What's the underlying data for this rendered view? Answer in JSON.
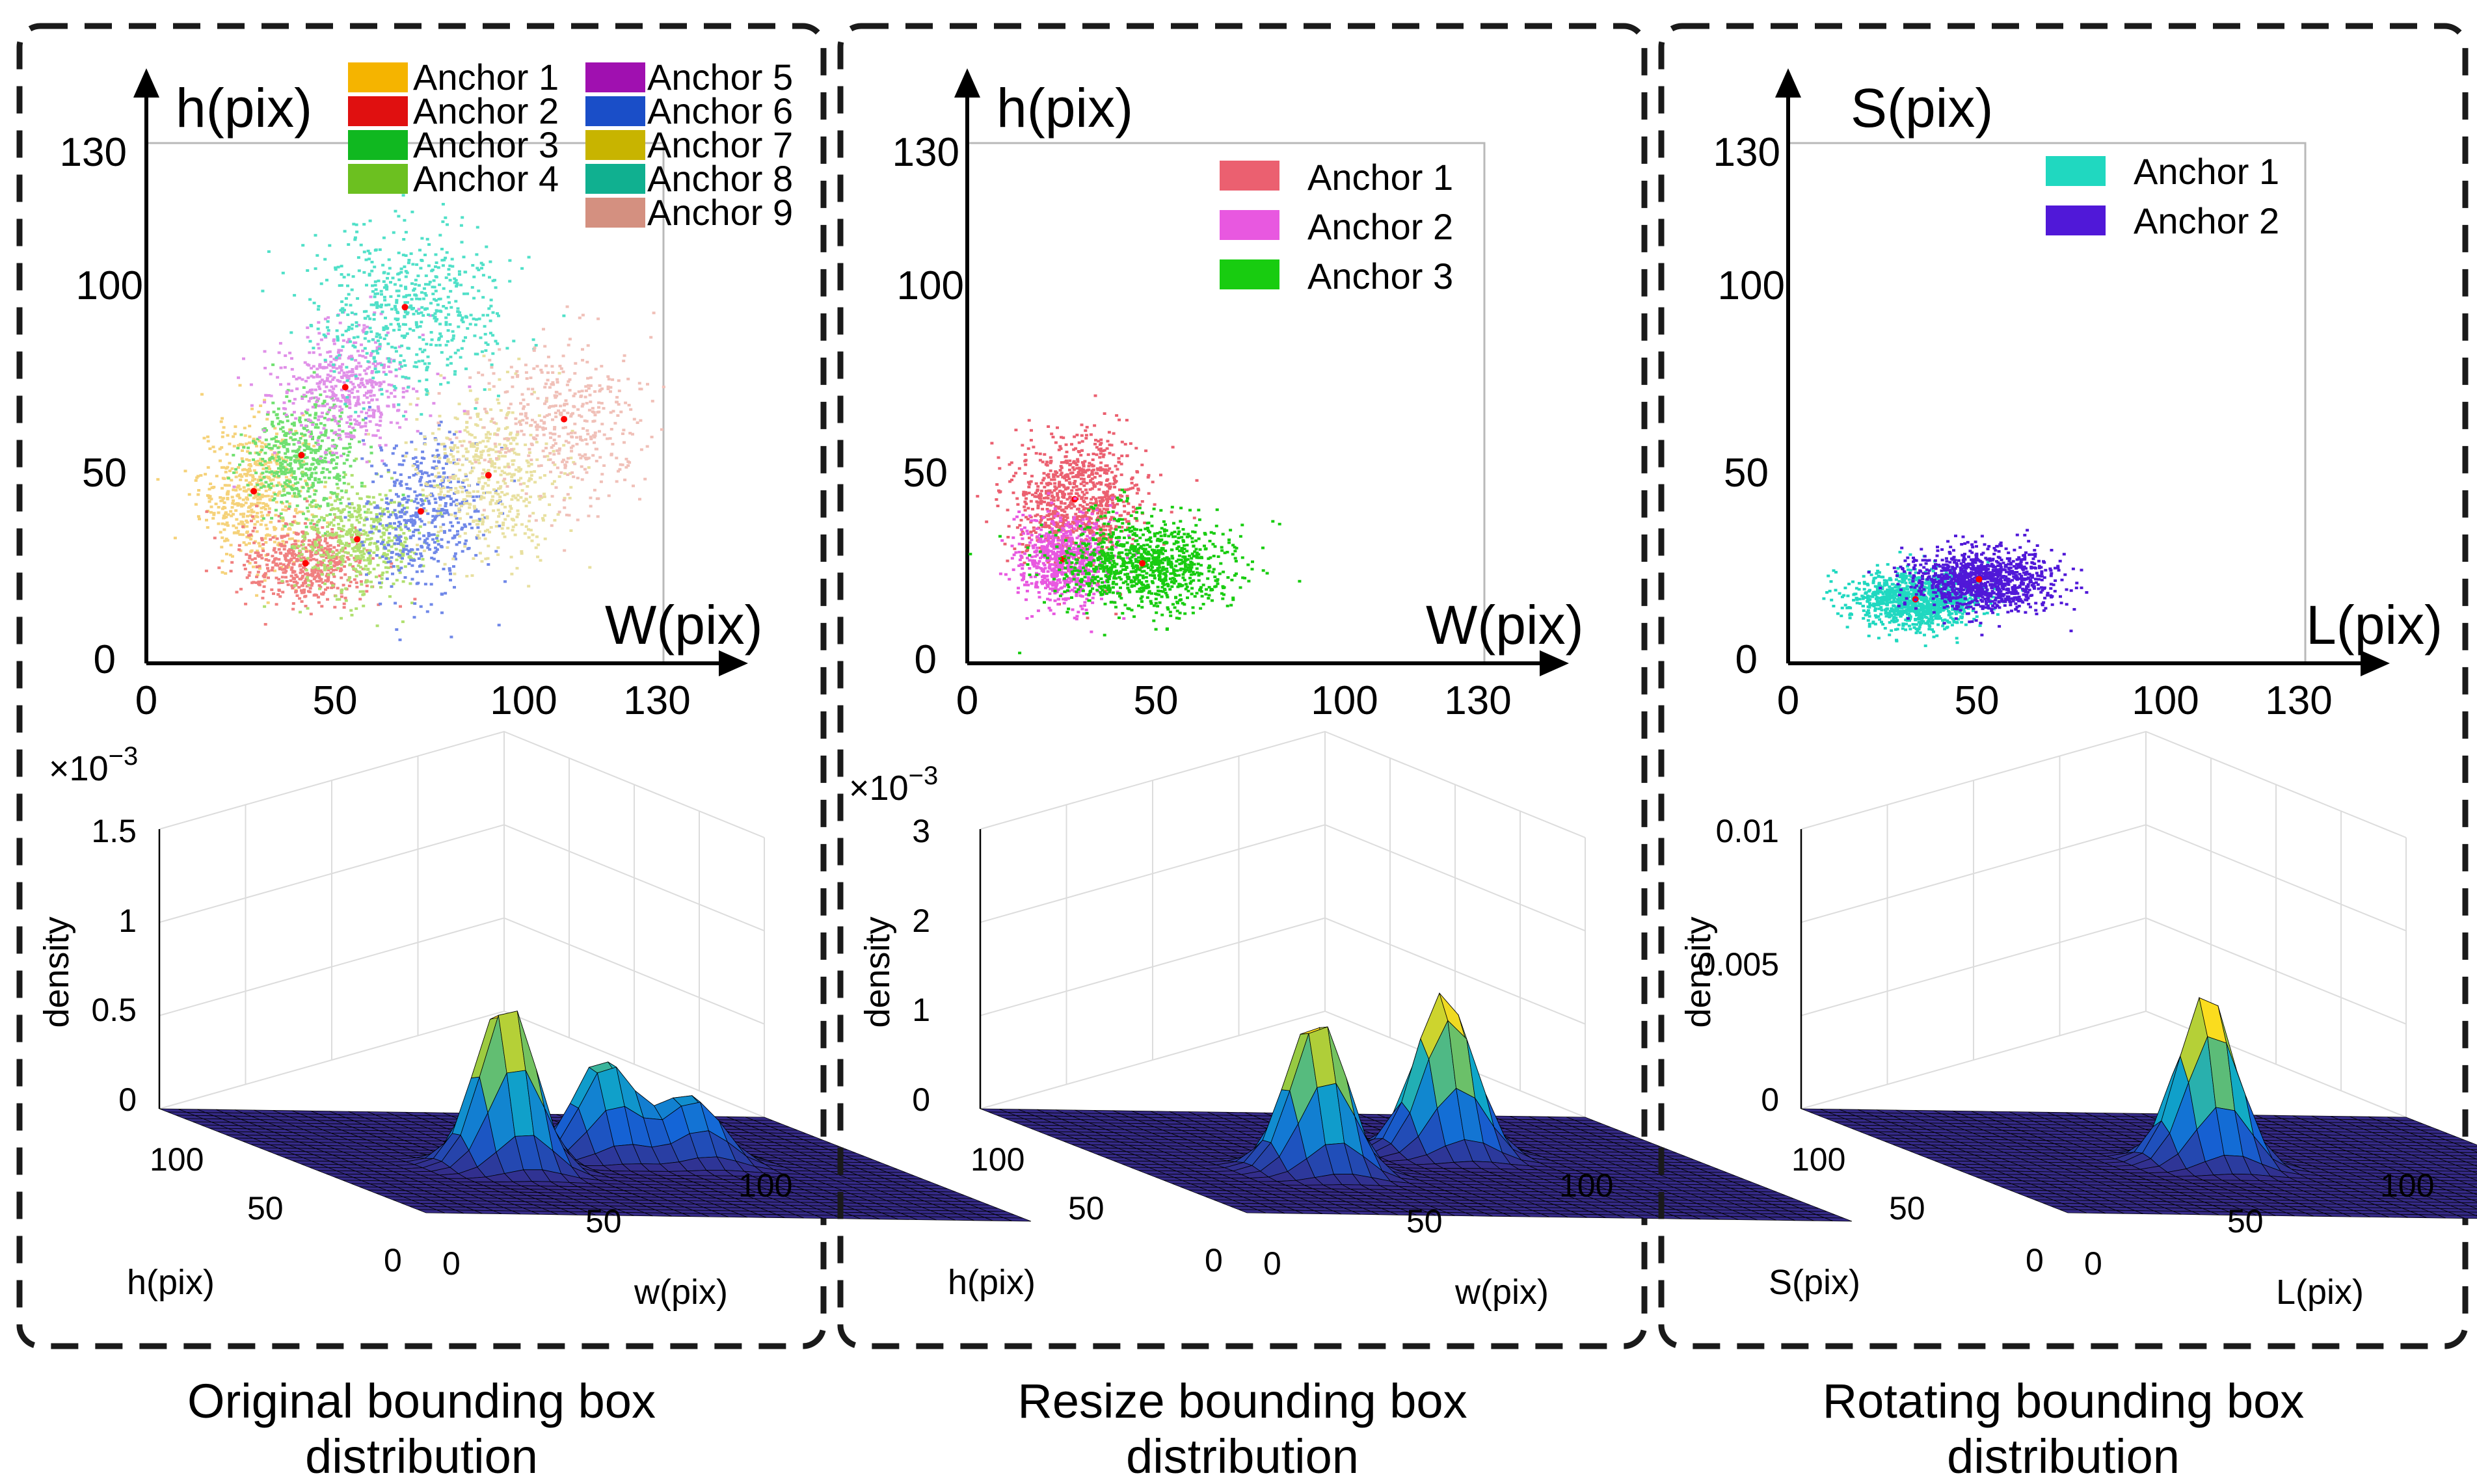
{
  "chart_data": [
    {
      "panel": "original",
      "type": "scatter",
      "caption": [
        "Original bounding box",
        "distribution"
      ],
      "xlabel": "W(pix)",
      "ylabel": "h(pix)",
      "xlim": [
        0,
        130
      ],
      "ylim": [
        0,
        130
      ],
      "xticks": [
        0,
        50,
        100,
        130
      ],
      "yticks": [
        0,
        50,
        100,
        130
      ],
      "legend": [
        {
          "name": "Anchor 1",
          "color": "#f5b400"
        },
        {
          "name": "Anchor 2",
          "color": "#e01010"
        },
        {
          "name": "Anchor 3",
          "color": "#10b820"
        },
        {
          "name": "Anchor 4",
          "color": "#6cc020"
        },
        {
          "name": "Anchor 5",
          "color": "#a010b0"
        },
        {
          "name": "Anchor 6",
          "color": "#1a4ec8"
        },
        {
          "name": "Anchor 7",
          "color": "#c8b400"
        },
        {
          "name": "Anchor 8",
          "color": "#10b090"
        },
        {
          "name": "Anchor 9",
          "color": "#d49080"
        }
      ],
      "clusters": [
        {
          "name": "Anchor 1",
          "color": "#f5d27a",
          "center": [
            27,
            43
          ],
          "spread": [
            7,
            9
          ],
          "count": 520
        },
        {
          "name": "Anchor 2",
          "color": "#f08080",
          "center": [
            40,
            25
          ],
          "spread": [
            8,
            5
          ],
          "count": 520
        },
        {
          "name": "Anchor 3",
          "color": "#70e070",
          "center": [
            39,
            52
          ],
          "spread": [
            7,
            7
          ],
          "count": 480
        },
        {
          "name": "Anchor 4",
          "color": "#b0e070",
          "center": [
            53,
            31
          ],
          "spread": [
            8,
            7
          ],
          "count": 480
        },
        {
          "name": "Anchor 5",
          "color": "#e090e8",
          "center": [
            50,
            69
          ],
          "spread": [
            9,
            8
          ],
          "count": 480
        },
        {
          "name": "Anchor 6",
          "color": "#7088e8",
          "center": [
            69,
            38
          ],
          "spread": [
            8,
            9
          ],
          "count": 460
        },
        {
          "name": "Anchor 7",
          "color": "#e8e0a0",
          "center": [
            86,
            47
          ],
          "spread": [
            9,
            10
          ],
          "count": 480
        },
        {
          "name": "Anchor 8",
          "color": "#50e0c8",
          "center": [
            65,
            89
          ],
          "spread": [
            12,
            10
          ],
          "count": 560
        },
        {
          "name": "Anchor 9",
          "color": "#f0c0b8",
          "center": [
            105,
            61
          ],
          "spread": [
            11,
            10
          ],
          "count": 420
        }
      ],
      "z_label": "density",
      "z_scale": "×10",
      "z_exponent": "−3",
      "z_ticks": [
        "0",
        "0.5",
        "1",
        "1.5"
      ],
      "surface_xlabel": "w(pix)",
      "surface_ylabel": "h(pix)",
      "surface_ticks": [
        "0",
        "50",
        "100"
      ],
      "peaks": [
        {
          "u": 0.33,
          "v": 0.55,
          "h": 0.62
        },
        {
          "u": 0.55,
          "v": 0.42,
          "h": 0.36
        },
        {
          "u": 0.68,
          "v": 0.45,
          "h": 0.24
        }
      ]
    },
    {
      "panel": "resize",
      "type": "scatter",
      "caption": [
        "Resize bounding box",
        "distribution"
      ],
      "xlabel": "W(pix)",
      "ylabel": "h(pix)",
      "xlim": [
        0,
        130
      ],
      "ylim": [
        0,
        130
      ],
      "xticks": [
        0,
        50,
        100,
        130
      ],
      "yticks": [
        0,
        50,
        100,
        130
      ],
      "legend": [
        {
          "name": "Anchor 1",
          "color": "#eb6070"
        },
        {
          "name": "Anchor 2",
          "color": "#e858e0"
        },
        {
          "name": "Anchor 3",
          "color": "#18cc10"
        }
      ],
      "clusters": [
        {
          "name": "Anchor 1",
          "color": "#eb6070",
          "center": [
            27,
            41
          ],
          "spread": [
            8,
            8
          ],
          "count": 900
        },
        {
          "name": "Anchor 2",
          "color": "#e858e0",
          "center": [
            24,
            26
          ],
          "spread": [
            6,
            6
          ],
          "count": 700
        },
        {
          "name": "Anchor 3",
          "color": "#18cc10",
          "center": [
            44,
            25
          ],
          "spread": [
            11,
            6
          ],
          "count": 1000
        }
      ],
      "z_label": "density",
      "z_scale": "×10",
      "z_exponent": "−3",
      "z_ticks": [
        "0",
        "1",
        "2",
        "3"
      ],
      "surface_xlabel": "w(pix)",
      "surface_ylabel": "h(pix)",
      "surface_ticks": [
        "0",
        "50",
        "100"
      ],
      "peaks": [
        {
          "u": 0.3,
          "v": 0.58,
          "h": 0.57
        },
        {
          "u": 0.6,
          "v": 0.38,
          "h": 0.58
        }
      ]
    },
    {
      "panel": "rotating",
      "type": "scatter",
      "caption": [
        "Rotating bounding box",
        "distribution"
      ],
      "xlabel": "L(pix)",
      "ylabel": "S(pix)",
      "xlim": [
        0,
        130
      ],
      "ylim": [
        0,
        130
      ],
      "xticks": [
        0,
        50,
        100,
        130
      ],
      "yticks": [
        0,
        50,
        100,
        130
      ],
      "legend": [
        {
          "name": "Anchor 1",
          "color": "#20d8c0"
        },
        {
          "name": "Anchor 2",
          "color": "#5018d8"
        }
      ],
      "clusters": [
        {
          "name": "Anchor 1",
          "color": "#20d8c0",
          "center": [
            32,
            16
          ],
          "spread": [
            8,
            3.5
          ],
          "count": 1100
        },
        {
          "name": "Anchor 2",
          "color": "#5018d8",
          "center": [
            48,
            21
          ],
          "spread": [
            9,
            4
          ],
          "count": 1100
        }
      ],
      "z_label": "density",
      "z_scale": "",
      "z_exponent": "",
      "z_ticks": [
        "0",
        "0.005",
        "0.01"
      ],
      "surface_xlabel": "L(pix)",
      "surface_ylabel": "S(pix)",
      "surface_ticks": [
        "0",
        "50",
        "100"
      ],
      "peaks": [
        {
          "u": 0.45,
          "v": 0.5,
          "h": 0.62
        }
      ]
    }
  ]
}
